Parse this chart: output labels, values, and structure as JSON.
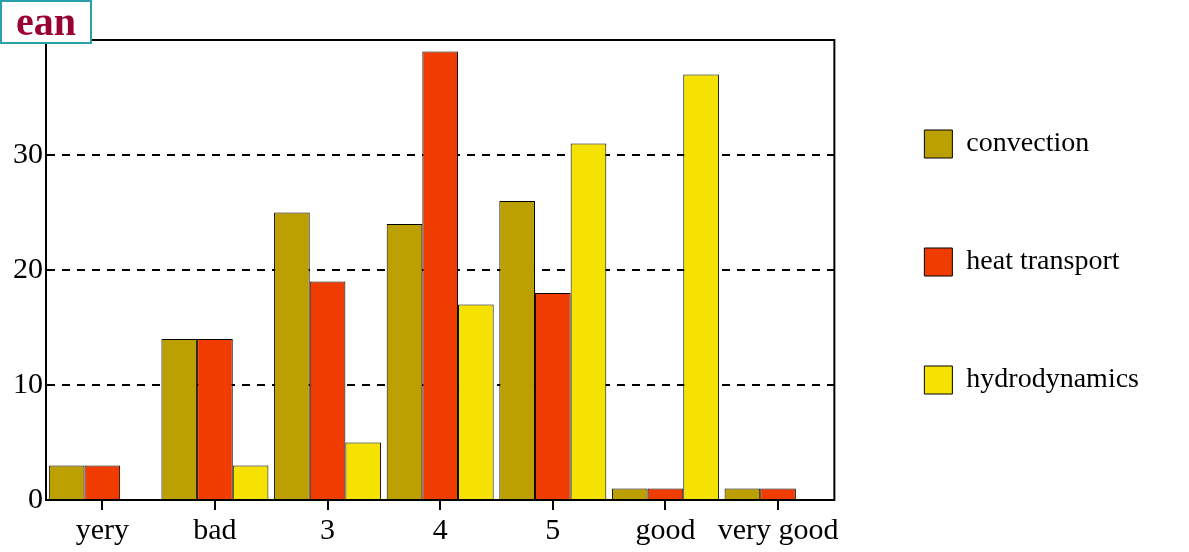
{
  "chart_data": {
    "type": "bar",
    "title": "ean",
    "categories": [
      "yery",
      "bad",
      "3",
      "4",
      "5",
      "good",
      "very good"
    ],
    "series": [
      {
        "name": "convection",
        "color": "#bc9f00",
        "values": [
          3,
          14,
          25,
          24,
          26,
          1,
          1
        ]
      },
      {
        "name": "heat transport",
        "color": "#f03c00",
        "values": [
          3,
          14,
          19,
          39,
          18,
          1,
          1
        ]
      },
      {
        "name": "hydrodynamics",
        "color": "#f5e200",
        "values": [
          null,
          3,
          5,
          17,
          31,
          37,
          null
        ]
      }
    ],
    "ylim": [
      0,
      40
    ],
    "yticks": [
      0,
      10,
      20,
      30
    ],
    "grid": "y",
    "line_style": "dashed",
    "legend": "right"
  }
}
